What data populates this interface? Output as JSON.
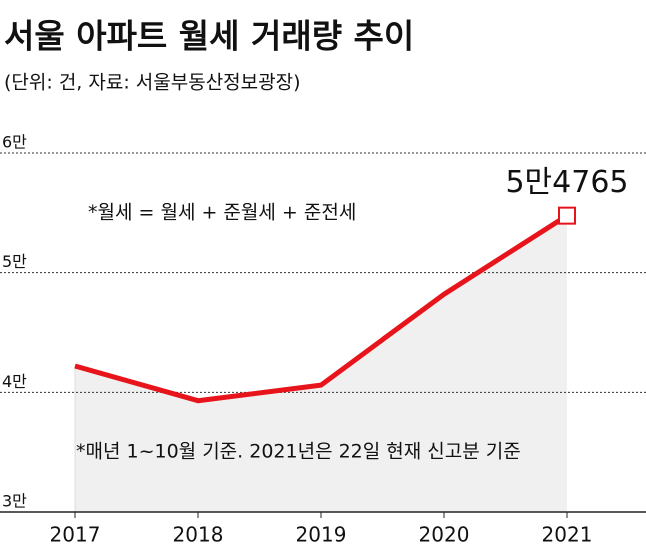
{
  "chart_data": {
    "type": "line",
    "title": "서울 아파트 월세 거래량 추이",
    "subtitle": "(단위: 건, 자료: 서울부동산정보광장)",
    "annotations": [
      "*월세 = 월세 + 준월세 + 준전세",
      "*매년 1~10월 기준. 2021년은 22일 현재 신고분 기준"
    ],
    "categories": [
      "2017",
      "2018",
      "2019",
      "2020",
      "2021"
    ],
    "series": [
      {
        "name": "월세 거래량",
        "color": "#e8141b",
        "values": [
          42200,
          39300,
          40600,
          48200,
          54765
        ],
        "value_labels": [
          null,
          null,
          null,
          null,
          "5만4765"
        ]
      }
    ],
    "ylim": [
      30000,
      60000
    ],
    "yticks": [
      {
        "value": 30000,
        "label": "3만"
      },
      {
        "value": 40000,
        "label": "4만"
      },
      {
        "value": 50000,
        "label": "5만"
      },
      {
        "value": 60000,
        "label": "6만"
      }
    ],
    "grid": true
  }
}
